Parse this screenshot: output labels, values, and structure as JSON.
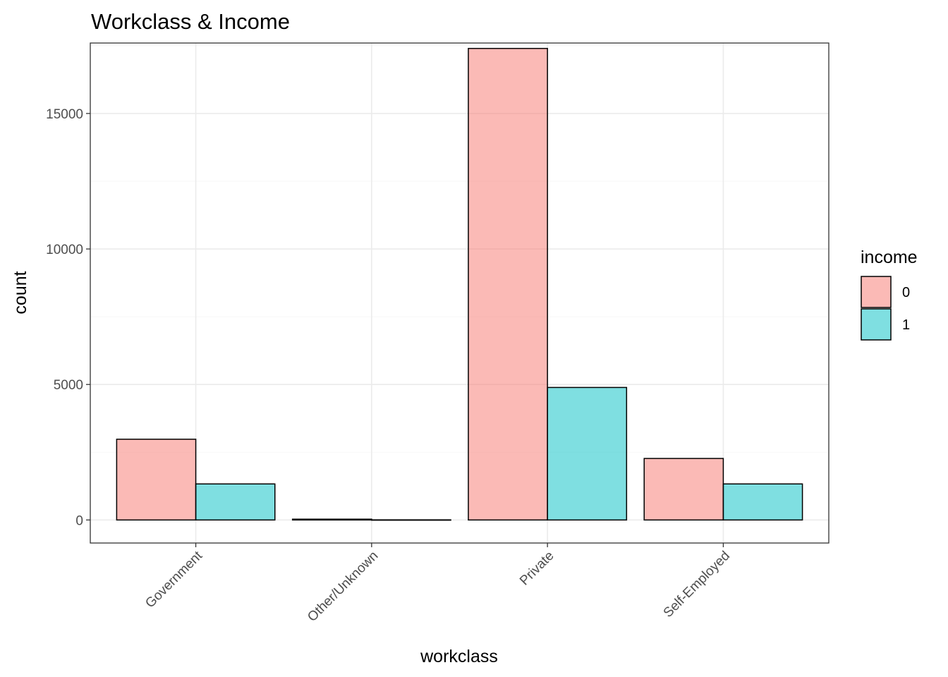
{
  "chart_data": {
    "type": "bar",
    "title": "Workclass & Income",
    "xlabel": "workclass",
    "ylabel": "count",
    "categories": [
      "Government",
      "Other/Unknown",
      "Private",
      "Self-Employed"
    ],
    "series": [
      {
        "name": "0",
        "values": [
          2980,
          30,
          17400,
          2270
        ],
        "color": "#F8766D"
      },
      {
        "name": "1",
        "values": [
          1330,
          5,
          4890,
          1330
        ],
        "color": "#00BFC4"
      }
    ],
    "ylim": [
      -850,
      17600
    ],
    "yticks": [
      0,
      5000,
      10000,
      15000
    ],
    "ytick_labels": [
      "0",
      "5000",
      "10000",
      "15000"
    ],
    "grid": true,
    "bar_alpha": 0.5,
    "legend": {
      "title": "income",
      "position": "right"
    }
  }
}
